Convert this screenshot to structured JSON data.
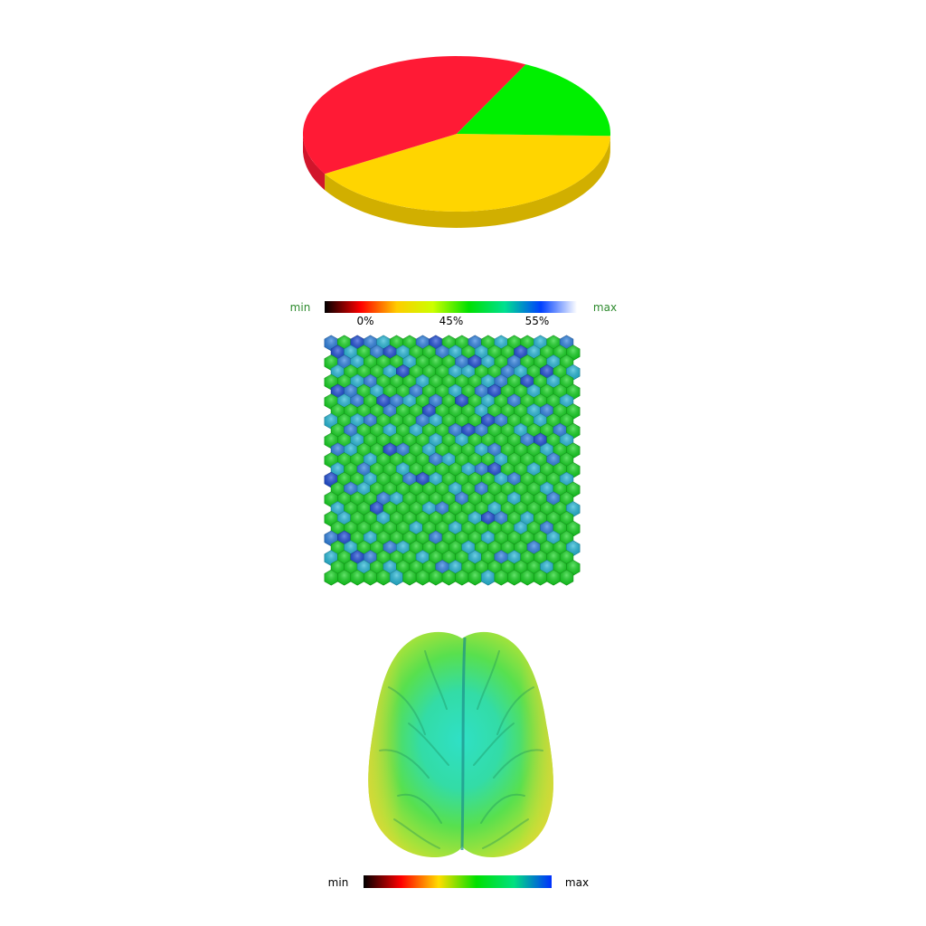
{
  "chart_data": [
    {
      "type": "pie",
      "title": "",
      "slices": [
        {
          "value": 41,
          "color": "#ffd500"
        },
        {
          "value": 41,
          "color": "#ff1a35"
        },
        {
          "value": 18,
          "color": "#00f000"
        }
      ]
    },
    {
      "type": "heatmap",
      "title": "",
      "colorbar": {
        "min_label": "min",
        "max_label": "max",
        "ticks": [
          "0%",
          "45%",
          "55%"
        ],
        "stops": [
          "#000000",
          "#ff0000",
          "#ffcc00",
          "#ccff00",
          "#00e000",
          "#00e090",
          "#0040ff",
          "#ffffff"
        ]
      },
      "grid": {
        "rows": 25,
        "cols": 19,
        "levels": [
          [
            2,
            0,
            3,
            2,
            1,
            0,
            0,
            2,
            3,
            0,
            0,
            2,
            0,
            1,
            0,
            0,
            1,
            0,
            2
          ],
          [
            3,
            1,
            0,
            2,
            3,
            1,
            0,
            0,
            2,
            1,
            0,
            1,
            0,
            0,
            3,
            1,
            0,
            0,
            0
          ],
          [
            0,
            2,
            1,
            0,
            0,
            0,
            1,
            0,
            0,
            0,
            2,
            3,
            1,
            0,
            2,
            0,
            0,
            1,
            0
          ],
          [
            1,
            0,
            0,
            0,
            1,
            3,
            0,
            0,
            0,
            1,
            1,
            0,
            0,
            2,
            1,
            0,
            3,
            0,
            1
          ],
          [
            0,
            0,
            1,
            2,
            0,
            0,
            0,
            1,
            0,
            0,
            0,
            0,
            1,
            2,
            0,
            3,
            0,
            1,
            0
          ],
          [
            3,
            2,
            0,
            1,
            0,
            0,
            2,
            0,
            0,
            1,
            0,
            2,
            3,
            0,
            0,
            1,
            0,
            0,
            0
          ],
          [
            0,
            1,
            2,
            0,
            3,
            2,
            1,
            0,
            2,
            0,
            3,
            0,
            1,
            0,
            2,
            0,
            0,
            0,
            1
          ],
          [
            0,
            0,
            0,
            0,
            2,
            0,
            0,
            3,
            0,
            0,
            0,
            1,
            0,
            0,
            0,
            1,
            2,
            0,
            0
          ],
          [
            1,
            0,
            1,
            2,
            0,
            0,
            0,
            2,
            1,
            0,
            0,
            0,
            3,
            2,
            0,
            0,
            1,
            0,
            0
          ],
          [
            0,
            2,
            0,
            0,
            1,
            0,
            1,
            0,
            0,
            2,
            3,
            2,
            0,
            0,
            1,
            0,
            0,
            2,
            0
          ],
          [
            0,
            0,
            1,
            0,
            0,
            0,
            0,
            0,
            1,
            0,
            1,
            0,
            0,
            0,
            0,
            2,
            3,
            0,
            1
          ],
          [
            2,
            1,
            0,
            0,
            3,
            2,
            0,
            1,
            0,
            0,
            0,
            1,
            2,
            0,
            0,
            0,
            1,
            0,
            0
          ],
          [
            0,
            0,
            0,
            1,
            0,
            0,
            0,
            0,
            2,
            1,
            0,
            0,
            0,
            1,
            0,
            0,
            0,
            2,
            0
          ],
          [
            1,
            0,
            2,
            0,
            0,
            1,
            0,
            0,
            0,
            0,
            1,
            2,
            3,
            0,
            0,
            1,
            0,
            0,
            0
          ],
          [
            3,
            0,
            0,
            1,
            0,
            0,
            2,
            3,
            1,
            0,
            0,
            0,
            0,
            1,
            2,
            0,
            0,
            0,
            1
          ],
          [
            0,
            2,
            1,
            0,
            0,
            0,
            0,
            0,
            0,
            1,
            0,
            2,
            0,
            0,
            0,
            0,
            1,
            0,
            0
          ],
          [
            0,
            0,
            0,
            0,
            2,
            1,
            0,
            0,
            0,
            0,
            2,
            0,
            0,
            0,
            1,
            0,
            0,
            2,
            0
          ],
          [
            1,
            0,
            0,
            3,
            0,
            0,
            0,
            1,
            2,
            0,
            0,
            0,
            1,
            0,
            0,
            0,
            0,
            0,
            1
          ],
          [
            0,
            1,
            0,
            0,
            1,
            0,
            0,
            0,
            0,
            0,
            0,
            1,
            3,
            2,
            0,
            1,
            0,
            0,
            0
          ],
          [
            0,
            0,
            0,
            0,
            0,
            0,
            1,
            0,
            0,
            1,
            0,
            0,
            0,
            0,
            1,
            0,
            2,
            0,
            0
          ],
          [
            2,
            3,
            0,
            1,
            0,
            0,
            0,
            0,
            2,
            0,
            0,
            0,
            1,
            0,
            0,
            0,
            0,
            1,
            0
          ],
          [
            0,
            1,
            0,
            0,
            2,
            1,
            0,
            0,
            0,
            0,
            1,
            0,
            0,
            0,
            0,
            2,
            0,
            0,
            1
          ],
          [
            1,
            0,
            3,
            2,
            0,
            0,
            0,
            1,
            0,
            0,
            0,
            1,
            0,
            2,
            1,
            0,
            0,
            0,
            0
          ],
          [
            0,
            0,
            1,
            0,
            1,
            0,
            0,
            0,
            2,
            1,
            0,
            0,
            0,
            0,
            0,
            0,
            1,
            0,
            0
          ],
          [
            0,
            0,
            0,
            0,
            0,
            1,
            0,
            0,
            0,
            0,
            0,
            0,
            1,
            0,
            0,
            0,
            0,
            0,
            0
          ]
        ],
        "palette": [
          "#12d61e",
          "#22b8d8",
          "#2a7fe0",
          "#1a4ad6"
        ]
      }
    },
    {
      "type": "other",
      "title": "",
      "colorbar": {
        "min_label": "min",
        "max_label": "max",
        "stops": [
          "#000000",
          "#ff0000",
          "#ffdd00",
          "#00e000",
          "#00e080",
          "#0030ff"
        ]
      }
    }
  ]
}
